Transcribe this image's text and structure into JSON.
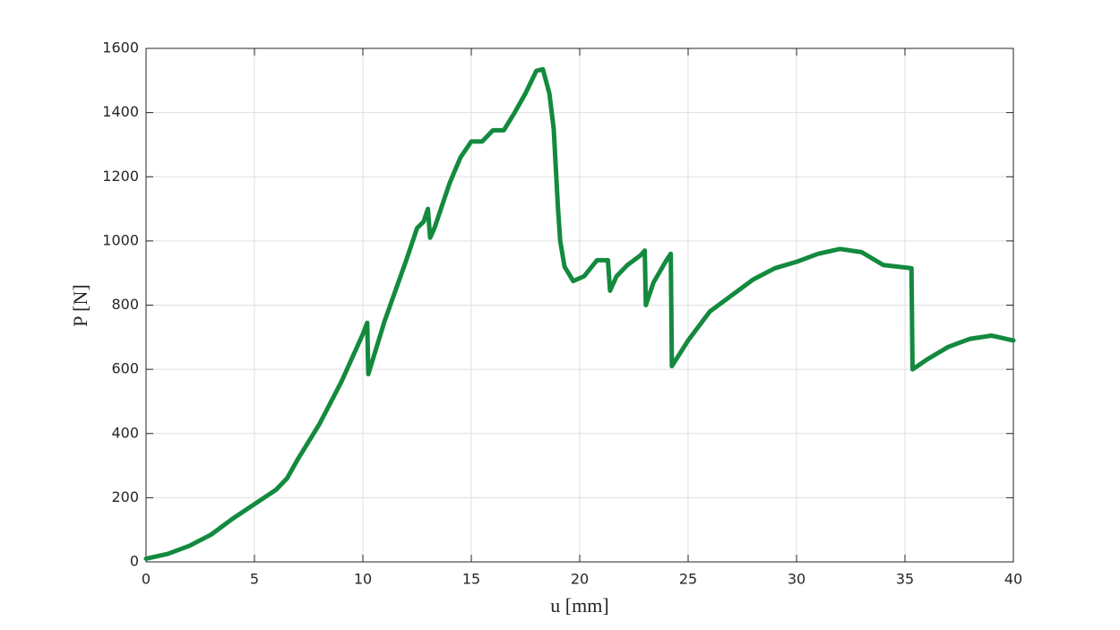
{
  "chart_data": {
    "type": "line",
    "x_label": "u [mm]",
    "y_label": "P [N]",
    "x": [
      0,
      1,
      2,
      3,
      4,
      5,
      6,
      6.5,
      7,
      8,
      9,
      10,
      10.2,
      10.25,
      11,
      12,
      12.5,
      12.8,
      13,
      13.1,
      13.3,
      14,
      14.5,
      15,
      15.5,
      16,
      16.5,
      17,
      17.5,
      18,
      18.3,
      18.6,
      18.8,
      19,
      19.1,
      19.3,
      19.7,
      20.2,
      20.8,
      21.3,
      21.4,
      21.7,
      22.2,
      22.8,
      23,
      23.05,
      23.4,
      24,
      24.2,
      24.25,
      25,
      26,
      27,
      28,
      29,
      30,
      31,
      32,
      33,
      34,
      35.3,
      35.35,
      36,
      37,
      38,
      39,
      40
    ],
    "series": [
      {
        "color": "#138a3e",
        "values": [
          10,
          25,
          50,
          85,
          135,
          180,
          225,
          260,
          320,
          430,
          560,
          710,
          745,
          585,
          750,
          940,
          1040,
          1060,
          1100,
          1010,
          1040,
          1180,
          1260,
          1310,
          1310,
          1345,
          1345,
          1400,
          1460,
          1530,
          1535,
          1460,
          1350,
          1100,
          1000,
          920,
          875,
          890,
          940,
          940,
          845,
          890,
          925,
          955,
          970,
          800,
          870,
          940,
          960,
          610,
          690,
          780,
          830,
          880,
          915,
          935,
          960,
          975,
          965,
          925,
          915,
          600,
          630,
          670,
          695,
          705,
          690
        ]
      }
    ],
    "xlim": [
      0,
      40
    ],
    "xticks": [
      0,
      5,
      10,
      15,
      20,
      25,
      30,
      35,
      40
    ],
    "ylim": [
      0,
      1600
    ],
    "yticks": [
      0,
      200,
      400,
      600,
      800,
      1000,
      1200,
      1400,
      1600
    ],
    "grid": true
  }
}
